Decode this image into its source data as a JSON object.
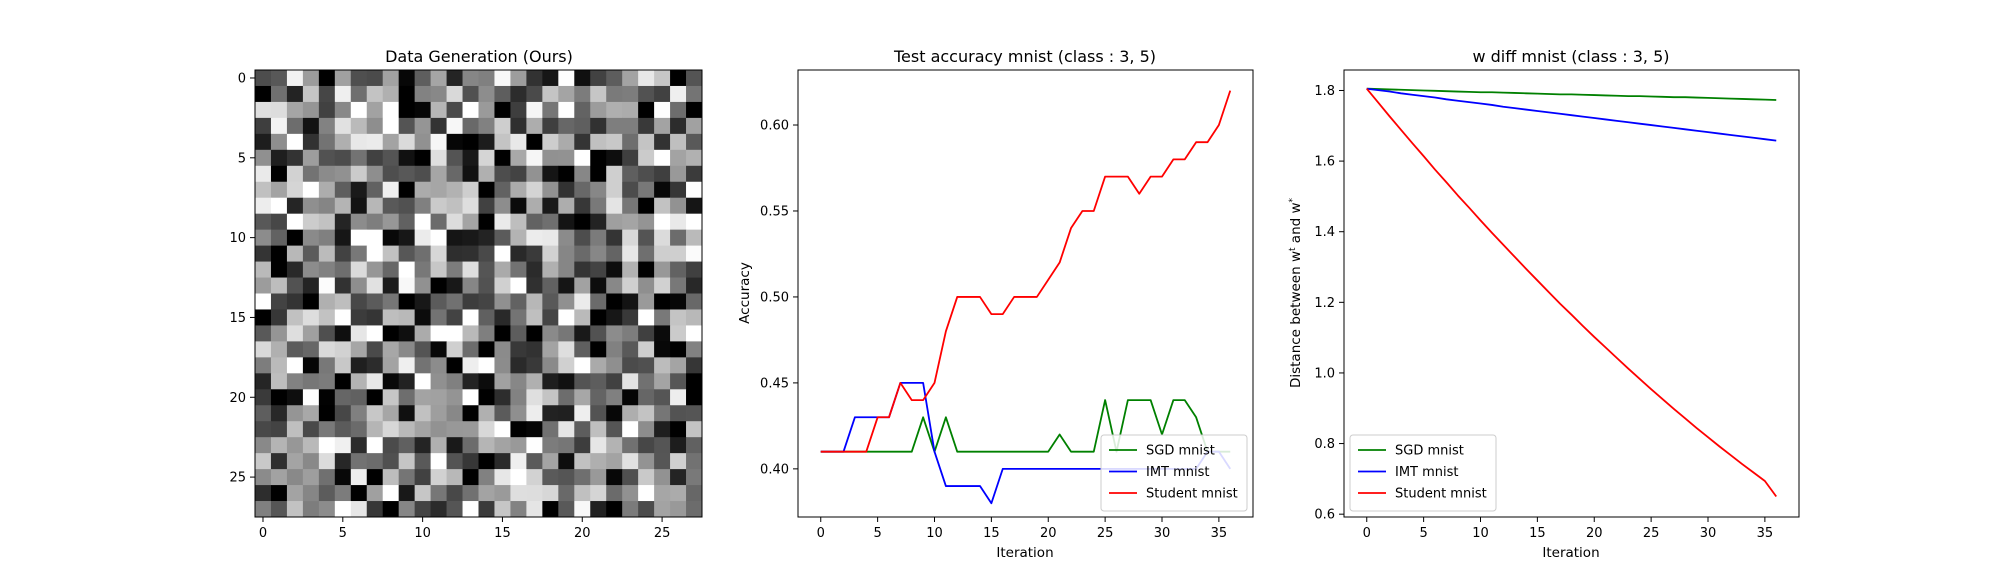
{
  "chart_data": [
    {
      "type": "heatmap",
      "title": "Data Generation (Ours)",
      "xlabel": "",
      "ylabel": "",
      "rows": 28,
      "cols": 28,
      "colormap": "gray",
      "xticks": [
        0,
        5,
        10,
        15,
        20,
        25
      ],
      "yticks": [
        0,
        5,
        10,
        15,
        20,
        25
      ]
    },
    {
      "type": "line",
      "title": "Test accuracy mnist (class : 3, 5)",
      "xlabel": "Iteration",
      "ylabel": "Accuracy",
      "xlim": [
        -2,
        38
      ],
      "ylim": [
        0.372,
        0.632
      ],
      "xticks": [
        0,
        5,
        10,
        15,
        20,
        25,
        30,
        35
      ],
      "yticks": [
        0.4,
        0.45,
        0.5,
        0.55,
        0.6
      ],
      "ytick_decimals": 2,
      "legend": "lower-right",
      "series": [
        {
          "name": "SGD mnist",
          "color": "#008000",
          "values": [
            0.41,
            0.41,
            0.41,
            0.41,
            0.41,
            0.41,
            0.41,
            0.41,
            0.41,
            0.43,
            0.41,
            0.43,
            0.41,
            0.41,
            0.41,
            0.41,
            0.41,
            0.41,
            0.41,
            0.41,
            0.41,
            0.42,
            0.41,
            0.41,
            0.41,
            0.44,
            0.41,
            0.44,
            0.44,
            0.44,
            0.42,
            0.44,
            0.44,
            0.43,
            0.41,
            0.41,
            0.41
          ]
        },
        {
          "name": "IMT mnist",
          "color": "#0000ff",
          "values": [
            0.41,
            0.41,
            0.41,
            0.43,
            0.43,
            0.43,
            0.43,
            0.45,
            0.45,
            0.45,
            0.41,
            0.39,
            0.39,
            0.39,
            0.39,
            0.38,
            0.4,
            0.4,
            0.4,
            0.4,
            0.4,
            0.4,
            0.4,
            0.4,
            0.4,
            0.4,
            0.4,
            0.4,
            0.4,
            0.4,
            0.4,
            0.4,
            0.4,
            0.4,
            0.41,
            0.41,
            0.4
          ]
        },
        {
          "name": "Student mnist",
          "color": "#ff0000",
          "values": [
            0.41,
            0.41,
            0.41,
            0.41,
            0.41,
            0.43,
            0.43,
            0.45,
            0.44,
            0.44,
            0.45,
            0.48,
            0.5,
            0.5,
            0.5,
            0.49,
            0.49,
            0.5,
            0.5,
            0.5,
            0.51,
            0.52,
            0.54,
            0.55,
            0.55,
            0.57,
            0.57,
            0.57,
            0.56,
            0.57,
            0.57,
            0.58,
            0.58,
            0.59,
            0.59,
            0.6,
            0.62
          ]
        }
      ]
    },
    {
      "type": "line",
      "title": "w diff mnist (class : 3, 5)",
      "xlabel": "Iteration",
      "ylabel": "Distance between w^t and w^*",
      "xlim": [
        -2,
        38
      ],
      "ylim": [
        0.592,
        1.858
      ],
      "xticks": [
        0,
        5,
        10,
        15,
        20,
        25,
        30,
        35
      ],
      "yticks": [
        0.6,
        0.8,
        1.0,
        1.2,
        1.4,
        1.6,
        1.8
      ],
      "ytick_decimals": 1,
      "legend": "lower-left",
      "series": [
        {
          "name": "SGD mnist",
          "color": "#008000",
          "values": [
            1.805,
            1.804,
            1.803,
            1.802,
            1.801,
            1.8,
            1.799,
            1.798,
            1.797,
            1.796,
            1.795,
            1.795,
            1.794,
            1.793,
            1.792,
            1.791,
            1.79,
            1.789,
            1.789,
            1.788,
            1.787,
            1.786,
            1.785,
            1.784,
            1.784,
            1.783,
            1.782,
            1.781,
            1.781,
            1.78,
            1.779,
            1.778,
            1.777,
            1.776,
            1.775,
            1.774,
            1.773
          ]
        },
        {
          "name": "IMT mnist",
          "color": "#0000ff",
          "values": [
            1.805,
            1.801,
            1.797,
            1.792,
            1.788,
            1.784,
            1.78,
            1.775,
            1.771,
            1.767,
            1.763,
            1.759,
            1.754,
            1.75,
            1.746,
            1.742,
            1.738,
            1.734,
            1.73,
            1.726,
            1.722,
            1.718,
            1.714,
            1.71,
            1.706,
            1.702,
            1.698,
            1.694,
            1.69,
            1.686,
            1.682,
            1.678,
            1.674,
            1.67,
            1.666,
            1.662,
            1.658
          ]
        },
        {
          "name": "Student mnist",
          "color": "#ff0000",
          "values": [
            1.805,
            1.766,
            1.727,
            1.689,
            1.651,
            1.614,
            1.576,
            1.54,
            1.503,
            1.468,
            1.432,
            1.397,
            1.363,
            1.329,
            1.295,
            1.262,
            1.229,
            1.196,
            1.165,
            1.133,
            1.102,
            1.072,
            1.042,
            1.012,
            0.983,
            0.954,
            0.926,
            0.898,
            0.871,
            0.844,
            0.818,
            0.792,
            0.767,
            0.742,
            0.718,
            0.694,
            0.65
          ]
        }
      ]
    }
  ]
}
